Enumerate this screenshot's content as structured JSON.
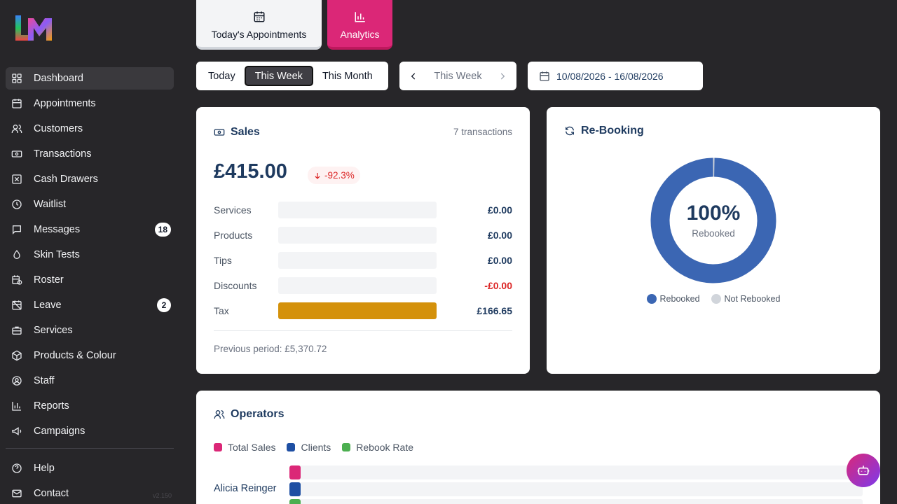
{
  "app": {
    "version": "v2.150"
  },
  "sidebar": {
    "items": [
      {
        "label": "Dashboard",
        "icon": "dashboard-icon",
        "active": true
      },
      {
        "label": "Appointments",
        "icon": "calendar-icon"
      },
      {
        "label": "Customers",
        "icon": "users-icon"
      },
      {
        "label": "Transactions",
        "icon": "banknote-icon"
      },
      {
        "label": "Cash Drawers",
        "icon": "cash-drawer-icon"
      },
      {
        "label": "Waitlist",
        "icon": "clock-icon"
      },
      {
        "label": "Messages",
        "icon": "message-icon",
        "badge": "18"
      },
      {
        "label": "Skin Tests",
        "icon": "droplet-icon"
      },
      {
        "label": "Roster",
        "icon": "calendar-clock-icon"
      },
      {
        "label": "Leave",
        "icon": "calendar-off-icon",
        "badge": "2"
      },
      {
        "label": "Services",
        "icon": "briefcase-icon"
      },
      {
        "label": "Products & Colour",
        "icon": "package-icon"
      },
      {
        "label": "Staff",
        "icon": "user-circle-icon"
      },
      {
        "label": "Reports",
        "icon": "bar-chart-icon"
      },
      {
        "label": "Campaigns",
        "icon": "megaphone-icon"
      }
    ],
    "footer_items": [
      {
        "label": "Help",
        "icon": "help-icon"
      },
      {
        "label": "Contact",
        "icon": "mail-icon"
      }
    ]
  },
  "tabs": {
    "appointments": "Today's Appointments",
    "analytics": "Analytics"
  },
  "filters": {
    "range_options": [
      "Today",
      "This Week",
      "This Month"
    ],
    "active_range": "This Week",
    "period_label": "This Week",
    "date_range": "10/08/2026 - 16/08/2026"
  },
  "sales": {
    "title": "Sales",
    "transactions": "7 transactions",
    "total": "£415.00",
    "change": "-92.3%",
    "rows": [
      {
        "label": "Services",
        "value": "£0.00",
        "fraction": 0
      },
      {
        "label": "Products",
        "value": "£0.00",
        "fraction": 0
      },
      {
        "label": "Tips",
        "value": "£0.00",
        "fraction": 0
      },
      {
        "label": "Discounts",
        "value": "-£0.00",
        "fraction": 0,
        "negative": true
      },
      {
        "label": "Tax",
        "value": "£166.65",
        "fraction": 1
      }
    ],
    "previous": "Previous period: £5,370.72"
  },
  "rebooking": {
    "title": "Re-Booking",
    "percent": "100%",
    "sub": "Rebooked",
    "rebooked_fraction": 1,
    "legend": [
      {
        "label": "Rebooked",
        "color": "#3b66b3"
      },
      {
        "label": "Not Rebooked",
        "color": "#d1d5db"
      }
    ]
  },
  "operators": {
    "title": "Operators",
    "legend": [
      {
        "label": "Total Sales",
        "color": "#db2777"
      },
      {
        "label": "Clients",
        "color": "#1e4fa3"
      },
      {
        "label": "Rebook Rate",
        "color": "#4caf50"
      }
    ],
    "rows": [
      {
        "name": "Alicia Reinger",
        "sales_fraction": 0.02,
        "clients_fraction": 0.02,
        "rebook_fraction": 0.02
      }
    ]
  },
  "colors": {
    "accent": "#db2777",
    "tax_bar": "#d4910b",
    "donut": "#3b66b3"
  }
}
